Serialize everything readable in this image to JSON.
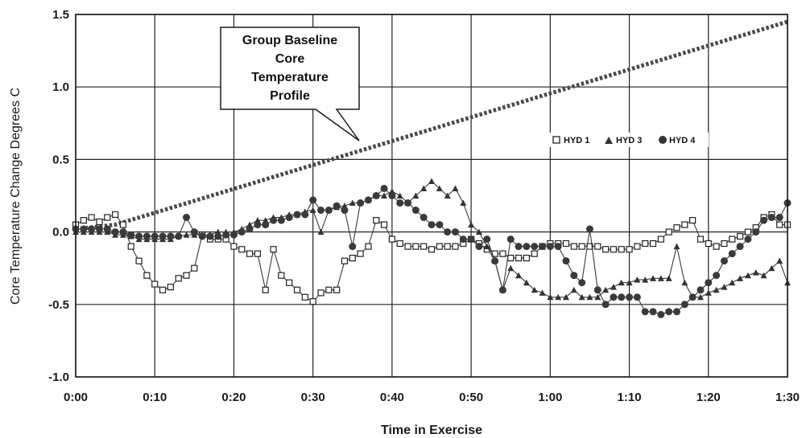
{
  "chart_data": {
    "type": "line",
    "xlabel": "Time in Exercise",
    "ylabel": "Core Temperature Change Degrees C",
    "x_unit": "minutes",
    "xlim": [
      0,
      90
    ],
    "ylim": [
      -1.0,
      1.5
    ],
    "x_ticks": [
      0,
      10,
      20,
      30,
      40,
      50,
      60,
      70,
      80,
      90
    ],
    "x_tick_labels": [
      "0:00",
      "0:10",
      "0:20",
      "0:30",
      "0:40",
      "0:50",
      "1:00",
      "1:10",
      "1:20",
      "1:30"
    ],
    "y_ticks": [
      -1.0,
      -0.5,
      0.0,
      0.5,
      1.0,
      1.5
    ],
    "y_tick_labels": [
      "-1.0",
      "-0.5",
      "0.0",
      "0.5",
      "1.0",
      "1.5"
    ],
    "grid": true,
    "legend_position": "right",
    "annotation": {
      "lines": [
        "Group Baseline",
        "Core",
        "Temperature",
        "Profile"
      ],
      "points_to_x": 36
    },
    "series": [
      {
        "name": "Group Baseline Core Temperature Profile",
        "style": "dotted",
        "color": "#555555",
        "x": [
          0,
          5,
          90
        ],
        "y": [
          0.02,
          0.05,
          1.45
        ]
      },
      {
        "name": "HYD 1",
        "marker": "square-open",
        "color": "#333333",
        "x": [
          0,
          1,
          2,
          3,
          4,
          5,
          6,
          7,
          8,
          9,
          10,
          11,
          12,
          13,
          14,
          15,
          16,
          17,
          18,
          19,
          20,
          21,
          22,
          23,
          24,
          25,
          26,
          27,
          28,
          29,
          30,
          31,
          32,
          33,
          34,
          35,
          36,
          37,
          38,
          39,
          40,
          41,
          42,
          43,
          44,
          45,
          46,
          47,
          48,
          49,
          50,
          51,
          52,
          53,
          54,
          55,
          56,
          57,
          58,
          59,
          60,
          61,
          62,
          63,
          64,
          65,
          66,
          67,
          68,
          69,
          70,
          71,
          72,
          73,
          74,
          75,
          76,
          77,
          78,
          79,
          80,
          81,
          82,
          83,
          84,
          85,
          86,
          87,
          88,
          89,
          90
        ],
        "y": [
          0.05,
          0.08,
          0.1,
          0.07,
          0.1,
          0.12,
          0.05,
          -0.1,
          -0.2,
          -0.3,
          -0.36,
          -0.4,
          -0.38,
          -0.32,
          -0.3,
          -0.25,
          -0.02,
          -0.05,
          -0.05,
          -0.05,
          -0.1,
          -0.12,
          -0.15,
          -0.15,
          -0.4,
          -0.12,
          -0.3,
          -0.35,
          -0.4,
          -0.45,
          -0.48,
          -0.42,
          -0.4,
          -0.4,
          -0.2,
          -0.18,
          -0.15,
          -0.1,
          0.08,
          0.05,
          -0.05,
          -0.08,
          -0.1,
          -0.1,
          -0.1,
          -0.12,
          -0.1,
          -0.1,
          -0.1,
          -0.08,
          -0.05,
          -0.08,
          -0.12,
          -0.15,
          -0.15,
          -0.18,
          -0.18,
          -0.18,
          -0.15,
          -0.1,
          -0.08,
          -0.08,
          -0.08,
          -0.1,
          -0.1,
          -0.1,
          -0.1,
          -0.12,
          -0.12,
          -0.12,
          -0.12,
          -0.1,
          -0.08,
          -0.08,
          -0.05,
          0.0,
          0.03,
          0.05,
          0.08,
          -0.05,
          -0.08,
          -0.1,
          -0.08,
          -0.05,
          -0.03,
          0.0,
          0.03,
          0.1,
          0.12,
          0.05,
          0.05
        ]
      },
      {
        "name": "HYD 3",
        "marker": "triangle",
        "color": "#333333",
        "x": [
          0,
          1,
          2,
          3,
          4,
          5,
          6,
          7,
          8,
          9,
          10,
          11,
          12,
          13,
          14,
          15,
          16,
          17,
          18,
          19,
          20,
          21,
          22,
          23,
          24,
          25,
          26,
          27,
          28,
          29,
          30,
          31,
          32,
          33,
          34,
          35,
          36,
          37,
          38,
          39,
          40,
          41,
          42,
          43,
          44,
          45,
          46,
          47,
          48,
          49,
          50,
          51,
          52,
          53,
          54,
          55,
          56,
          57,
          58,
          59,
          60,
          61,
          62,
          63,
          64,
          65,
          66,
          67,
          68,
          69,
          70,
          71,
          72,
          73,
          74,
          75,
          76,
          77,
          78,
          79,
          80,
          81,
          82,
          83,
          84,
          85,
          86,
          87,
          88,
          89,
          90
        ],
        "y": [
          0.0,
          0.0,
          0.0,
          0.0,
          0.0,
          -0.02,
          -0.02,
          -0.03,
          -0.05,
          -0.05,
          -0.05,
          -0.05,
          -0.05,
          -0.03,
          -0.02,
          -0.02,
          -0.02,
          -0.02,
          0.0,
          0.0,
          0.0,
          0.02,
          0.05,
          0.08,
          0.08,
          0.1,
          0.1,
          0.12,
          0.12,
          0.14,
          0.15,
          0.0,
          0.15,
          0.17,
          0.18,
          0.2,
          0.2,
          0.22,
          0.25,
          0.25,
          0.28,
          0.25,
          0.2,
          0.25,
          0.3,
          0.35,
          0.3,
          0.25,
          0.3,
          0.2,
          0.05,
          0.0,
          -0.1,
          -0.2,
          -0.4,
          -0.25,
          -0.3,
          -0.35,
          -0.4,
          -0.42,
          -0.45,
          -0.45,
          -0.45,
          -0.4,
          -0.45,
          -0.45,
          -0.45,
          -0.4,
          -0.38,
          -0.35,
          -0.35,
          -0.33,
          -0.33,
          -0.32,
          -0.32,
          -0.32,
          -0.1,
          -0.35,
          -0.45,
          -0.45,
          -0.42,
          -0.4,
          -0.38,
          -0.35,
          -0.32,
          -0.3,
          -0.28,
          -0.3,
          -0.25,
          -0.2,
          -0.35
        ]
      },
      {
        "name": "HYD 4",
        "marker": "circle",
        "color": "#333333",
        "x": [
          0,
          1,
          2,
          3,
          4,
          5,
          6,
          7,
          8,
          9,
          10,
          11,
          12,
          13,
          14,
          15,
          16,
          17,
          18,
          19,
          20,
          21,
          22,
          23,
          24,
          25,
          26,
          27,
          28,
          29,
          30,
          31,
          32,
          33,
          34,
          35,
          36,
          37,
          38,
          39,
          40,
          41,
          42,
          43,
          44,
          45,
          46,
          47,
          48,
          49,
          50,
          51,
          52,
          53,
          54,
          55,
          56,
          57,
          58,
          59,
          60,
          61,
          62,
          63,
          64,
          65,
          66,
          67,
          68,
          69,
          70,
          71,
          72,
          73,
          74,
          75,
          76,
          77,
          78,
          79,
          80,
          81,
          82,
          83,
          84,
          85,
          86,
          87,
          88,
          89,
          90
        ],
        "y": [
          0.02,
          0.02,
          0.02,
          0.02,
          0.02,
          0.0,
          0.0,
          -0.02,
          -0.03,
          -0.03,
          -0.03,
          -0.03,
          -0.03,
          -0.03,
          0.1,
          0.0,
          -0.03,
          -0.03,
          -0.03,
          -0.02,
          -0.02,
          0.0,
          0.02,
          0.05,
          0.05,
          0.08,
          0.08,
          0.1,
          0.12,
          0.12,
          0.22,
          0.15,
          0.15,
          0.18,
          0.15,
          -0.1,
          0.2,
          0.22,
          0.25,
          0.3,
          0.25,
          0.2,
          0.2,
          0.15,
          0.1,
          0.05,
          0.05,
          0.0,
          0.0,
          -0.05,
          -0.05,
          -0.1,
          -0.05,
          -0.2,
          -0.4,
          -0.05,
          -0.1,
          -0.1,
          -0.1,
          -0.1,
          -0.1,
          -0.1,
          -0.2,
          -0.3,
          -0.35,
          0.02,
          -0.4,
          -0.5,
          -0.45,
          -0.45,
          -0.45,
          -0.45,
          -0.55,
          -0.55,
          -0.57,
          -0.55,
          -0.55,
          -0.5,
          -0.45,
          -0.4,
          -0.35,
          -0.3,
          -0.2,
          -0.15,
          -0.1,
          -0.05,
          0.0,
          0.08,
          0.1,
          0.1,
          0.2
        ]
      }
    ]
  }
}
